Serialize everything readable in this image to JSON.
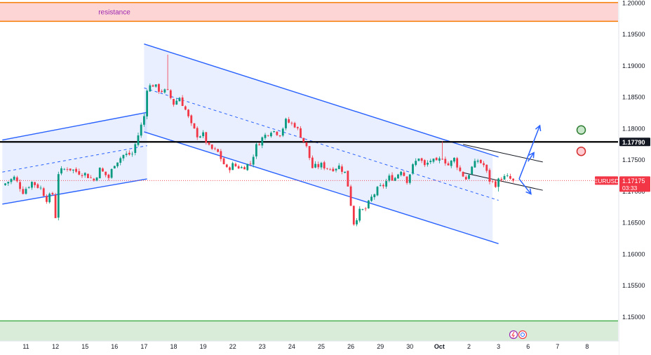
{
  "chart_data": {
    "type": "candlestick",
    "symbol": "EURUSD",
    "last_price": 1.17175,
    "last_price_label": "1.17175",
    "countdown": "03:33",
    "key_level": 1.1779,
    "key_level_label": "1.17790",
    "ylim": [
      1.1462,
      1.2005
    ],
    "y_ticks": [
      1.2,
      1.195,
      1.19,
      1.185,
      1.18,
      1.175,
      1.17,
      1.165,
      1.16,
      1.155,
      1.15
    ],
    "y_tick_labels": [
      "1.20000",
      "1.19500",
      "1.19000",
      "1.18500",
      "1.18000",
      "1.17500",
      "1.17000",
      "1.16500",
      "1.16000",
      "1.15500",
      "1.15000"
    ],
    "x_ticks": [
      {
        "label": "11",
        "i": 0
      },
      {
        "label": "12",
        "i": 10
      },
      {
        "label": "15",
        "i": 20
      },
      {
        "label": "16",
        "i": 30
      },
      {
        "label": "17",
        "i": 40
      },
      {
        "label": "18",
        "i": 50
      },
      {
        "label": "19",
        "i": 60
      },
      {
        "label": "22",
        "i": 70
      },
      {
        "label": "23",
        "i": 80
      },
      {
        "label": "24",
        "i": 90
      },
      {
        "label": "25",
        "i": 100
      },
      {
        "label": "26",
        "i": 110
      },
      {
        "label": "29",
        "i": 120
      },
      {
        "label": "30",
        "i": 130
      },
      {
        "label": "Oct",
        "i": 140
      },
      {
        "label": "2",
        "i": 150
      },
      {
        "label": "3",
        "i": 160
      },
      {
        "label": "6",
        "i": 170
      },
      {
        "label": "7",
        "i": 180
      },
      {
        "label": "8",
        "i": 190
      }
    ],
    "anchors": [
      [
        -8,
        1.171
      ],
      [
        -4,
        1.1722
      ],
      [
        -1,
        1.17
      ],
      [
        2,
        1.1715
      ],
      [
        5,
        1.1705
      ],
      [
        7,
        1.1688
      ],
      [
        9,
        1.1696
      ],
      [
        10,
        1.166
      ],
      [
        11,
        1.173
      ],
      [
        14,
        1.1738
      ],
      [
        17,
        1.1732
      ],
      [
        20,
        1.1728
      ],
      [
        23,
        1.1718
      ],
      [
        25,
        1.1735
      ],
      [
        28,
        1.1722
      ],
      [
        30,
        1.1745
      ],
      [
        33,
        1.1758
      ],
      [
        36,
        1.176
      ],
      [
        38,
        1.179
      ],
      [
        40,
        1.182
      ],
      [
        41,
        1.1865
      ],
      [
        43,
        1.187
      ],
      [
        45,
        1.1862
      ],
      [
        48,
        1.1858
      ],
      [
        50,
        1.184
      ],
      [
        52,
        1.185
      ],
      [
        54,
        1.183
      ],
      [
        56,
        1.1805
      ],
      [
        58,
        1.179
      ],
      [
        60,
        1.179
      ],
      [
        62,
        1.177
      ],
      [
        65,
        1.1762
      ],
      [
        68,
        1.1735
      ],
      [
        70,
        1.1742
      ],
      [
        73,
        1.1738
      ],
      [
        76,
        1.1745
      ],
      [
        78,
        1.1772
      ],
      [
        80,
        1.1785
      ],
      [
        83,
        1.1798
      ],
      [
        86,
        1.1792
      ],
      [
        88,
        1.1812
      ],
      [
        91,
        1.1806
      ],
      [
        93,
        1.179
      ],
      [
        95,
        1.177
      ],
      [
        97,
        1.1738
      ],
      [
        100,
        1.1742
      ],
      [
        103,
        1.1736
      ],
      [
        106,
        1.174
      ],
      [
        108,
        1.173
      ],
      [
        109,
        1.171
      ],
      [
        110,
        1.168
      ],
      [
        111,
        1.165
      ],
      [
        113,
        1.1668
      ],
      [
        115,
        1.1672
      ],
      [
        117,
        1.169
      ],
      [
        119,
        1.1703
      ],
      [
        121,
        1.171
      ],
      [
        123,
        1.1722
      ],
      [
        125,
        1.1722
      ],
      [
        127,
        1.1735
      ],
      [
        129,
        1.1718
      ],
      [
        131,
        1.174
      ],
      [
        133,
        1.1755
      ],
      [
        135,
        1.174
      ],
      [
        137,
        1.175
      ],
      [
        139,
        1.1745
      ],
      [
        141,
        1.1755
      ],
      [
        143,
        1.1742
      ],
      [
        145,
        1.1752
      ],
      [
        147,
        1.1732
      ],
      [
        149,
        1.172
      ],
      [
        151,
        1.1738
      ],
      [
        153,
        1.175
      ],
      [
        155,
        1.1742
      ],
      [
        157,
        1.1718
      ],
      [
        159,
        1.1712
      ],
      [
        161,
        1.1722
      ],
      [
        163,
        1.1722
      ],
      [
        165,
        1.17175
      ]
    ],
    "spikes": [
      {
        "i": 10,
        "low": 1.1658
      },
      {
        "i": 48,
        "high": 1.1918
      },
      {
        "i": 141,
        "high": 1.178
      },
      {
        "i": 160,
        "low": 1.17
      }
    ],
    "zones": [
      {
        "id": "resistance",
        "label": "resistance",
        "from": 1.1971,
        "to": 1.2001,
        "fill": "#fdd5d5",
        "border": "#f57c00"
      },
      {
        "id": "support",
        "label": "",
        "from": 1.1445,
        "to": 1.1494,
        "fill": "#d8ecd9",
        "border": "#4caf50"
      }
    ],
    "channels": [
      {
        "id": "channel-rising-left",
        "upper": [
          [
            -8,
            1.1782
          ],
          [
            41,
            1.1826
          ]
        ],
        "lower": [
          [
            -8,
            1.168
          ],
          [
            41,
            1.172
          ]
        ],
        "mid": [
          [
            -8,
            1.1731
          ],
          [
            41,
            1.1773
          ]
        ]
      },
      {
        "id": "channel-falling",
        "upper": [
          [
            40,
            1.1935
          ],
          [
            160,
            1.1755
          ]
        ],
        "lower": [
          [
            40,
            1.1795
          ],
          [
            160,
            1.1617
          ]
        ],
        "mid": [
          [
            40,
            1.1865
          ],
          [
            160,
            1.1686
          ]
        ],
        "shade_to": 158
      },
      {
        "id": "channel-flag",
        "upper": [
          [
            148,
            1.1775
          ],
          [
            175,
            1.1747
          ]
        ],
        "lower": [
          [
            148,
            1.173
          ],
          [
            175,
            1.1702
          ]
        ]
      }
    ],
    "arrows": [
      {
        "id": "arrow-breakout-up",
        "from": [
          167,
          1.172
        ],
        "to": [
          174,
          1.1805
        ],
        "color": "#2962ff"
      },
      {
        "id": "arrow-retest-up",
        "from": [
          170,
          1.1748
        ],
        "to": [
          172,
          1.1762
        ],
        "color": "#2962ff"
      },
      {
        "id": "arrow-breakdown",
        "from": [
          167,
          1.172
        ],
        "to": [
          171,
          1.1696
        ],
        "color": "#2962ff"
      }
    ],
    "markers": [
      {
        "id": "marker-green",
        "i": 188,
        "price": 1.1798,
        "fill": "#c8e6c9",
        "stroke": "#2e7d32"
      },
      {
        "id": "marker-red",
        "i": 188,
        "price": 1.1764,
        "fill": "#ffcdd2",
        "stroke": "#d32f2f"
      }
    ],
    "colors": {
      "up": "#089981",
      "down": "#f23645",
      "channel": "#2962ff",
      "level": "#000000",
      "last_price": "#f23645"
    }
  }
}
